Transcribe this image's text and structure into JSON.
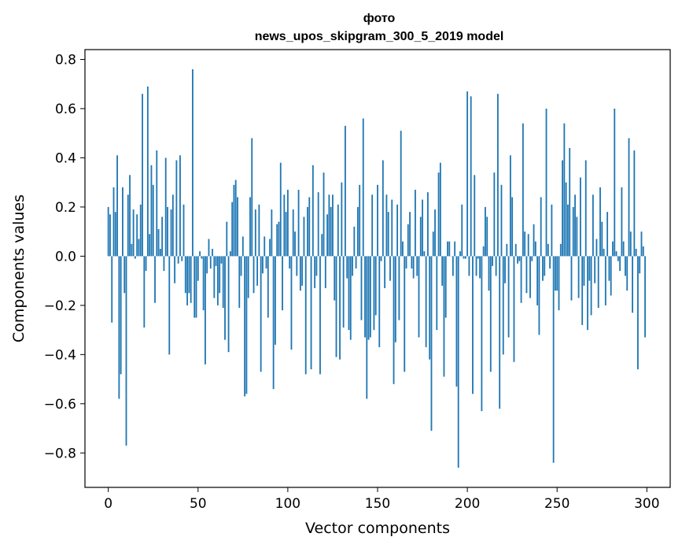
{
  "chart_data": {
    "type": "bar",
    "title": "фото",
    "subtitle": "news_upos_skipgram_300_5_2019 model",
    "xlabel": "Vector components",
    "ylabel": "Components values",
    "xlim": [
      -13,
      313
    ],
    "ylim": [
      -0.94,
      0.84
    ],
    "xticks": [
      0,
      50,
      100,
      150,
      200,
      250,
      300
    ],
    "yticks": [
      -0.8,
      -0.6,
      -0.4,
      -0.2,
      0.0,
      0.2,
      0.4,
      0.6,
      0.8
    ],
    "ytick_labels": [
      "−0.8",
      "−0.6",
      "−0.4",
      "−0.2",
      "0.0",
      "0.2",
      "0.4",
      "0.6",
      "0.8"
    ],
    "bar_color": "#1f77b4",
    "grid": false,
    "x": "0..299",
    "values": [
      0.2,
      0.17,
      -0.27,
      0.28,
      0.18,
      0.41,
      -0.58,
      -0.48,
      0.28,
      -0.15,
      -0.77,
      0.25,
      0.33,
      0.05,
      0.19,
      -0.01,
      0.17,
      0.07,
      0.21,
      0.66,
      -0.29,
      -0.06,
      0.69,
      0.09,
      0.37,
      0.29,
      -0.19,
      0.43,
      0.11,
      0.03,
      0.16,
      -0.06,
      0.4,
      0.2,
      -0.4,
      0.19,
      0.25,
      -0.11,
      0.39,
      -0.03,
      0.41,
      -0.02,
      0.21,
      -0.15,
      -0.2,
      -0.15,
      -0.19,
      0.76,
      -0.25,
      -0.25,
      -0.1,
      0.02,
      -0.01,
      -0.22,
      -0.44,
      -0.07,
      0.07,
      -0.05,
      0.03,
      -0.17,
      -0.04,
      -0.2,
      -0.15,
      -0.03,
      -0.21,
      -0.34,
      0.14,
      -0.39,
      0.02,
      0.22,
      0.29,
      0.31,
      0.24,
      -0.21,
      -0.08,
      0.08,
      -0.57,
      -0.56,
      -0.17,
      0.24,
      0.48,
      -0.15,
      0.19,
      -0.12,
      0.21,
      -0.47,
      -0.07,
      0.08,
      -0.05,
      -0.25,
      0.07,
      0.19,
      -0.54,
      -0.36,
      0.13,
      0.14,
      0.38,
      -0.22,
      0.25,
      0.18,
      0.27,
      -0.05,
      -0.38,
      0.19,
      0.1,
      -0.08,
      0.27,
      -0.14,
      -0.12,
      0.16,
      -0.48,
      0.2,
      0.24,
      -0.46,
      0.37,
      -0.13,
      -0.08,
      0.26,
      -0.48,
      0.09,
      0.34,
      -0.13,
      0.17,
      0.25,
      0.2,
      0.25,
      -0.18,
      -0.41,
      0.21,
      -0.42,
      0.3,
      -0.29,
      0.53,
      -0.09,
      -0.3,
      -0.34,
      -0.08,
      0.12,
      -0.05,
      0.2,
      0.29,
      -0.26,
      0.56,
      -0.33,
      -0.58,
      -0.34,
      -0.33,
      0.25,
      -0.3,
      -0.24,
      0.29,
      -0.37,
      -0.02,
      0.39,
      -0.13,
      0.25,
      0.18,
      -0.1,
      0.23,
      -0.52,
      -0.35,
      0.21,
      -0.26,
      0.51,
      0.06,
      -0.47,
      -0.05,
      0.13,
      0.18,
      -0.05,
      -0.09,
      0.27,
      -0.08,
      -0.33,
      0.16,
      0.23,
      0.02,
      -0.37,
      0.26,
      -0.42,
      -0.71,
      0.1,
      0.19,
      -0.3,
      0.34,
      0.38,
      -0.12,
      -0.49,
      -0.25,
      0.06,
      0.06,
      0.0,
      -0.08,
      0.06,
      -0.53,
      -0.86,
      0.02,
      0.21,
      -0.01,
      -0.01,
      0.67,
      -0.08,
      0.65,
      -0.56,
      0.33,
      -0.08,
      -0.01,
      -0.09,
      -0.63,
      0.04,
      0.2,
      0.16,
      -0.14,
      -0.47,
      -0.04,
      0.34,
      -0.08,
      0.66,
      -0.62,
      0.29,
      -0.4,
      -0.11,
      0.05,
      -0.33,
      0.41,
      0.24,
      -0.43,
      0.05,
      -0.03,
      -0.02,
      -0.19,
      0.54,
      0.1,
      -0.15,
      0.09,
      -0.17,
      -0.02,
      0.13,
      0.06,
      -0.2,
      -0.32,
      0.24,
      -0.1,
      -0.08,
      0.6,
      0.05,
      -0.05,
      0.21,
      -0.84,
      -0.14,
      -0.14,
      -0.22,
      0.05,
      0.39,
      0.54,
      0.3,
      0.21,
      0.44,
      -0.18,
      0.2,
      0.25,
      0.16,
      -0.17,
      0.32,
      -0.28,
      -0.12,
      0.39,
      -0.3,
      -0.1,
      -0.24,
      0.25,
      -0.11,
      0.07,
      -0.21,
      0.28,
      0.14,
      0.03,
      -0.2,
      0.18,
      -0.1,
      -0.16,
      0.06,
      0.6,
      0.02,
      -0.02,
      -0.06,
      0.28,
      0.06,
      -0.08,
      -0.14,
      0.48,
      0.1,
      -0.23,
      0.43,
      0.03,
      -0.46,
      -0.07,
      0.1,
      0.04,
      -0.33
    ]
  }
}
